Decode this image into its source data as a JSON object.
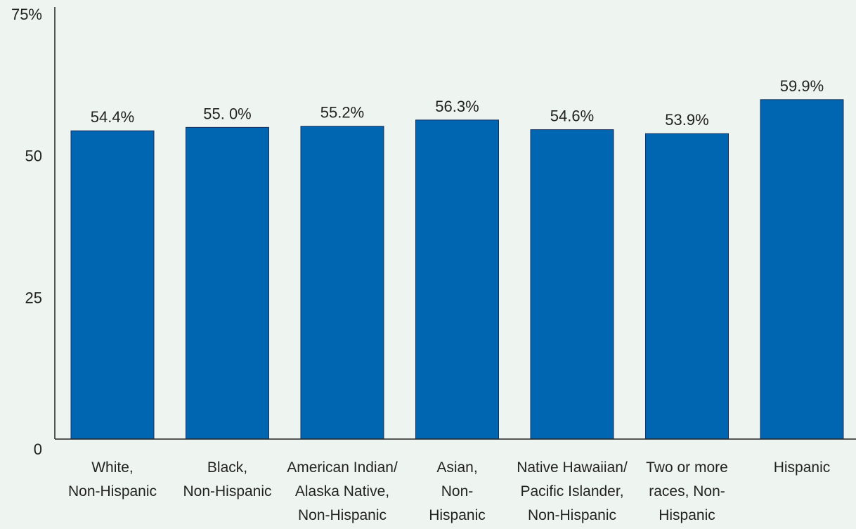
{
  "chart_data": {
    "type": "bar",
    "categories": [
      [
        "White,",
        "Non-Hispanic"
      ],
      [
        "Black,",
        "Non-Hispanic"
      ],
      [
        "American Indian/",
        "Alaska Native,",
        "Non-Hispanic"
      ],
      [
        "Asian,",
        "Non-",
        "Hispanic"
      ],
      [
        "Native Hawaiian/",
        "Pacific Islander,",
        "Non-Hispanic"
      ],
      [
        "Two or more",
        "races, Non-",
        "Hispanic"
      ],
      [
        "Hispanic"
      ]
    ],
    "values": [
      54.4,
      55.0,
      55.2,
      56.3,
      54.6,
      53.9,
      59.9
    ],
    "data_labels": [
      "54.4%",
      "55. 0%",
      "55.2%",
      "56.3%",
      "54.6%",
      "53.9%",
      "59.9%"
    ],
    "ylim": [
      0,
      75
    ],
    "yticks": [
      0,
      25,
      50,
      75
    ],
    "ytick_labels": [
      "0",
      "25",
      "50",
      "75%"
    ],
    "title": "",
    "xlabel": "",
    "ylabel": "",
    "grid": false,
    "bar_color": "#0066b2",
    "background_color": "#eef5f0"
  }
}
